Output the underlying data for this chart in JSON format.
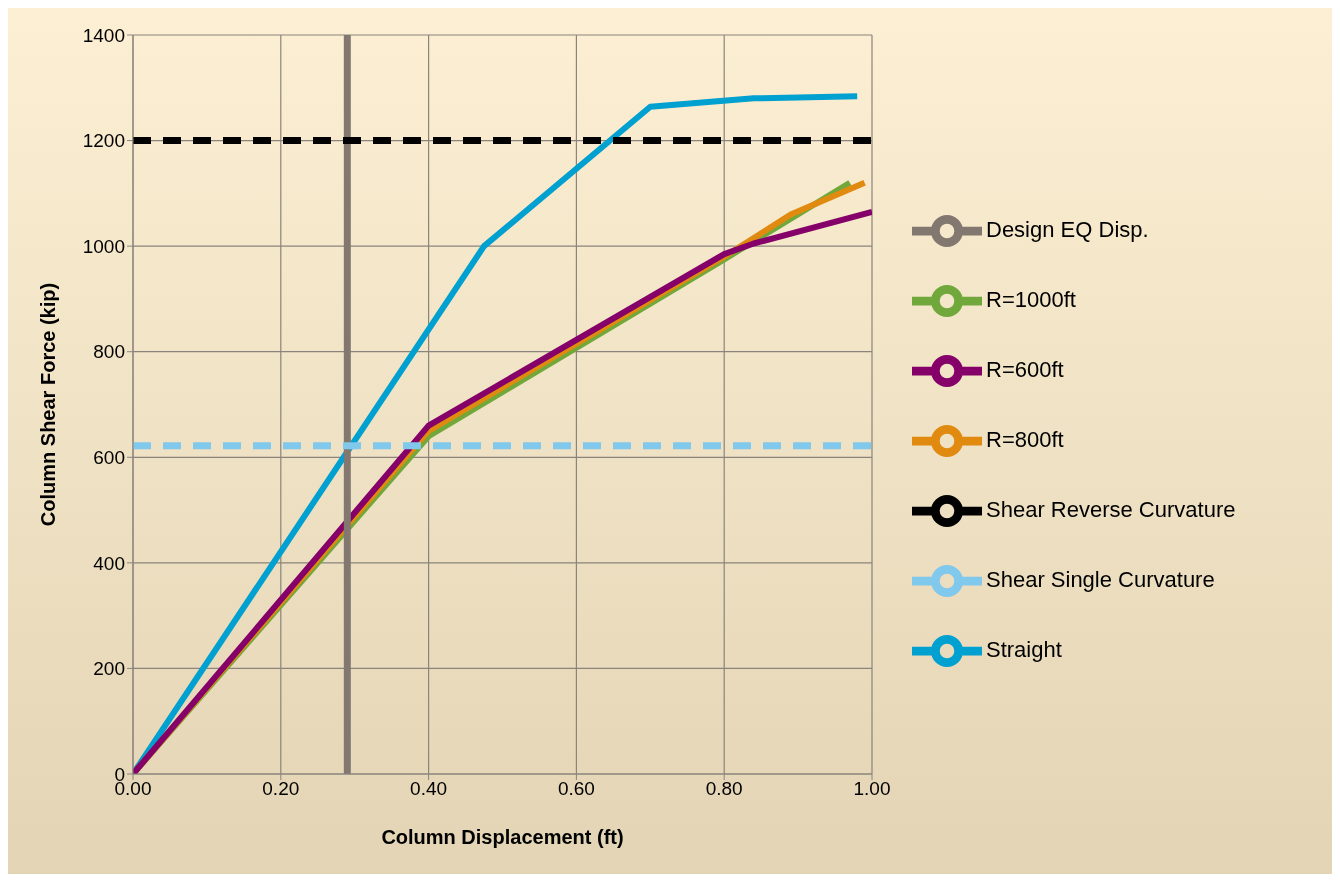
{
  "chart_data": {
    "type": "line",
    "xlabel": "Column Displacement (ft)",
    "ylabel": "Column Shear Force (kip)",
    "xlim": [
      0,
      1
    ],
    "xticks": [
      {
        "value": 0,
        "label": "0.00"
      },
      {
        "value": 0.2,
        "label": "0.20"
      },
      {
        "value": 0.4,
        "label": "0.40"
      },
      {
        "value": 0.6,
        "label": "0.60"
      },
      {
        "value": 0.8,
        "label": "0.80"
      },
      {
        "value": 1,
        "label": "1.00"
      }
    ],
    "ylim": [
      0,
      1400
    ],
    "yticks": [
      0,
      200,
      400,
      600,
      800,
      1000,
      1200,
      1400
    ],
    "grid": true,
    "legend": "right",
    "marker": "none",
    "series": [
      {
        "name": "Straight",
        "color": "#00a0d0",
        "x": [
          0,
          0.475,
          0.7,
          0.84,
          0.98
        ],
        "values": [
          0,
          1000,
          1264,
          1280,
          1284
        ]
      },
      {
        "name": "R=1000ft",
        "color": "#70a83c",
        "x": [
          0,
          0.4,
          0.8,
          0.97
        ],
        "values": [
          0,
          640,
          975,
          1120
        ]
      },
      {
        "name": "R=800ft",
        "color": "#e08a10",
        "x": [
          0,
          0.4,
          0.8,
          0.89,
          0.99
        ],
        "values": [
          0,
          650,
          980,
          1060,
          1120
        ]
      },
      {
        "name": "R=600ft",
        "color": "#850068",
        "x": [
          0,
          0.4,
          0.8,
          0.84,
          1
        ],
        "values": [
          0,
          660,
          985,
          1005,
          1065
        ]
      },
      {
        "name": "Design EQ Disp.",
        "color": "#827870",
        "x": [
          0.29,
          0.29
        ],
        "values": [
          0,
          1400
        ]
      },
      {
        "name": "Shear Reverse Curvature",
        "color": "#000000",
        "line_style": "dashed",
        "x": [
          0,
          1
        ],
        "values": [
          1200,
          1200
        ]
      },
      {
        "name": "Shear Single Curvature",
        "color": "#80c8ec",
        "line_style": "dashed",
        "x": [
          0,
          1
        ],
        "values": [
          622,
          622
        ]
      }
    ]
  }
}
